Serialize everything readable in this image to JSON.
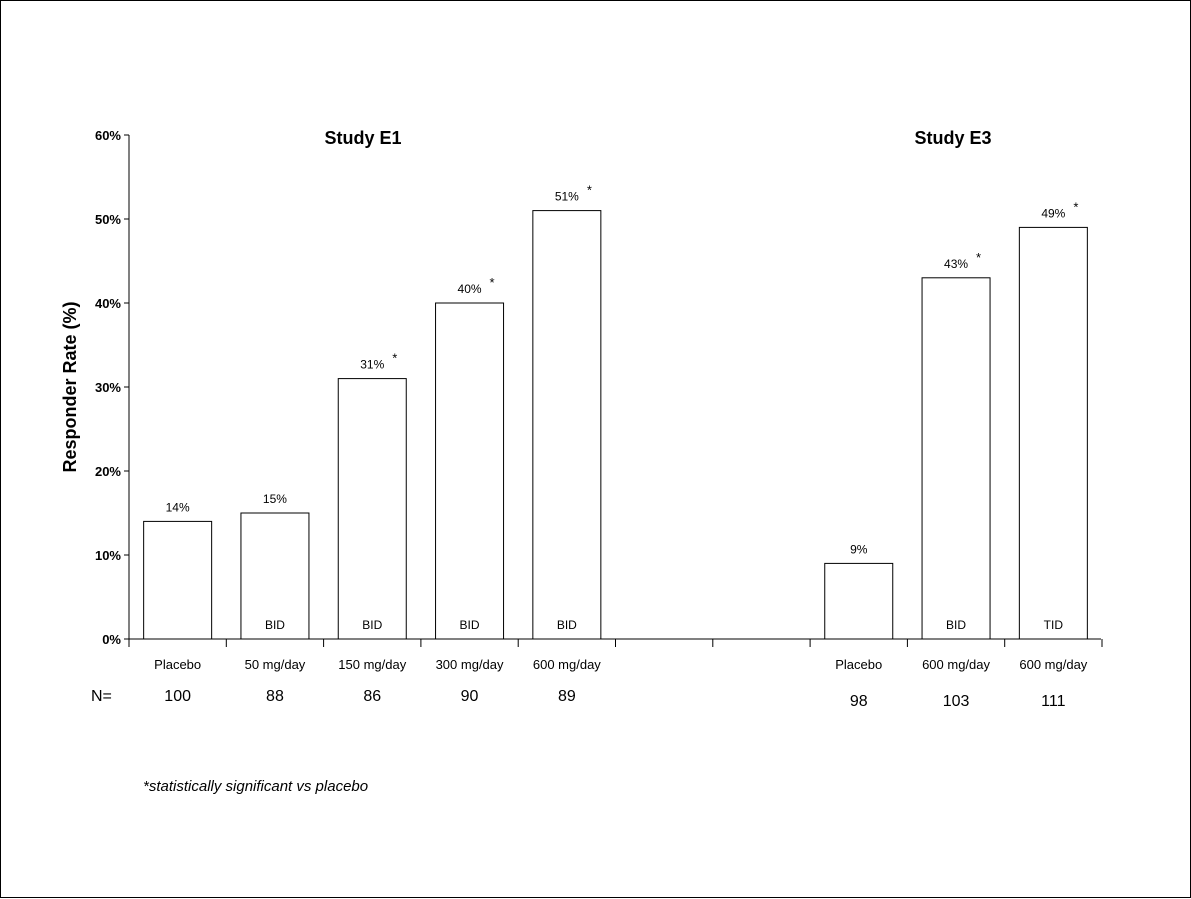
{
  "chart_data": {
    "type": "bar",
    "ylabel": "Responder Rate (%)",
    "ylim": [
      0,
      60
    ],
    "yticks": [
      "0%",
      "10%",
      "20%",
      "30%",
      "40%",
      "50%",
      "60%"
    ],
    "grid": false,
    "n_label": "N=",
    "footnote": "*statistically significant vs placebo",
    "studies": [
      {
        "title": "Study E1",
        "bars": [
          {
            "category": "Placebo",
            "value": 14,
            "label": "14%",
            "significant": false,
            "regimen": "",
            "n": "100"
          },
          {
            "category": "50 mg/day",
            "value": 15,
            "label": "15%",
            "significant": false,
            "regimen": "BID",
            "n": "88"
          },
          {
            "category": "150 mg/day",
            "value": 31,
            "label": "31%",
            "significant": true,
            "regimen": "BID",
            "n": "86"
          },
          {
            "category": "300 mg/day",
            "value": 40,
            "label": "40%",
            "significant": true,
            "regimen": "BID",
            "n": "90"
          },
          {
            "category": "600 mg/day",
            "value": 51,
            "label": "51%",
            "significant": true,
            "regimen": "BID",
            "n": "89"
          }
        ]
      },
      {
        "title": "Study E3",
        "bars": [
          {
            "category": "Placebo",
            "value": 9,
            "label": "9%",
            "significant": false,
            "regimen": "",
            "n": "98"
          },
          {
            "category": "600 mg/day",
            "value": 43,
            "label": "43%",
            "significant": true,
            "regimen": "BID",
            "n": "103"
          },
          {
            "category": "600 mg/day",
            "value": 49,
            "label": "49%",
            "significant": true,
            "regimen": "TID",
            "n": "111"
          }
        ]
      }
    ],
    "significance_marker": "*"
  }
}
